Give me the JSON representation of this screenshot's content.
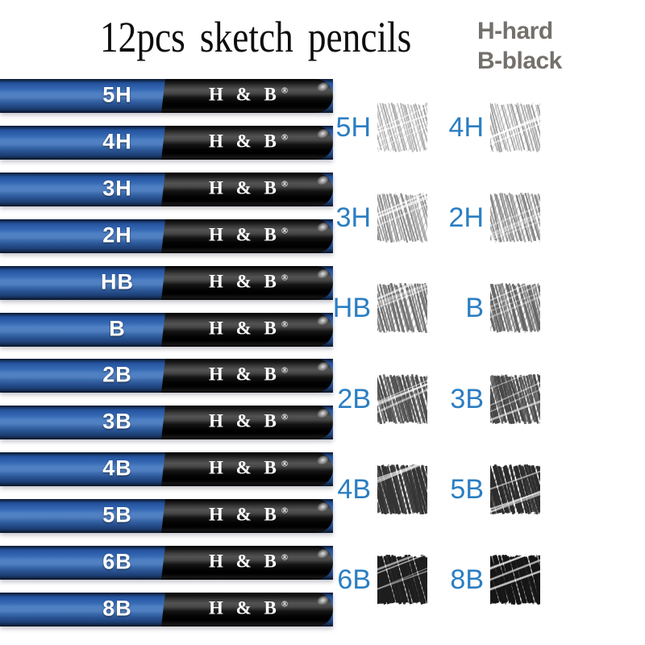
{
  "title": "12pcs sketch pencils",
  "legend": {
    "line1": "H-hard",
    "line2": "B-black"
  },
  "brand": {
    "label": "H & B",
    "registered": "®"
  },
  "grades": [
    {
      "label": "5H",
      "swatch_shade": "#9c9c9c"
    },
    {
      "label": "4H",
      "swatch_shade": "#939393"
    },
    {
      "label": "3H",
      "swatch_shade": "#888888"
    },
    {
      "label": "2H",
      "swatch_shade": "#808080"
    },
    {
      "label": "HB",
      "swatch_shade": "#6d6d6d"
    },
    {
      "label": "B",
      "swatch_shade": "#646464"
    },
    {
      "label": "2B",
      "swatch_shade": "#505050"
    },
    {
      "label": "3B",
      "swatch_shade": "#464646"
    },
    {
      "label": "4B",
      "swatch_shade": "#343434"
    },
    {
      "label": "5B",
      "swatch_shade": "#2c2c2c"
    },
    {
      "label": "6B",
      "swatch_shade": "#1e1e1e"
    },
    {
      "label": "8B",
      "swatch_shade": "#161616"
    }
  ],
  "colors": {
    "swatch_label_blue": "#2b7ec2",
    "legend_gray": "#74706b",
    "title_black": "#0d0d0d",
    "pencil_blue_mid": "#4e80c4",
    "pencil_black": "#0a0a0a",
    "pencil_text_white": "#ffffff"
  }
}
